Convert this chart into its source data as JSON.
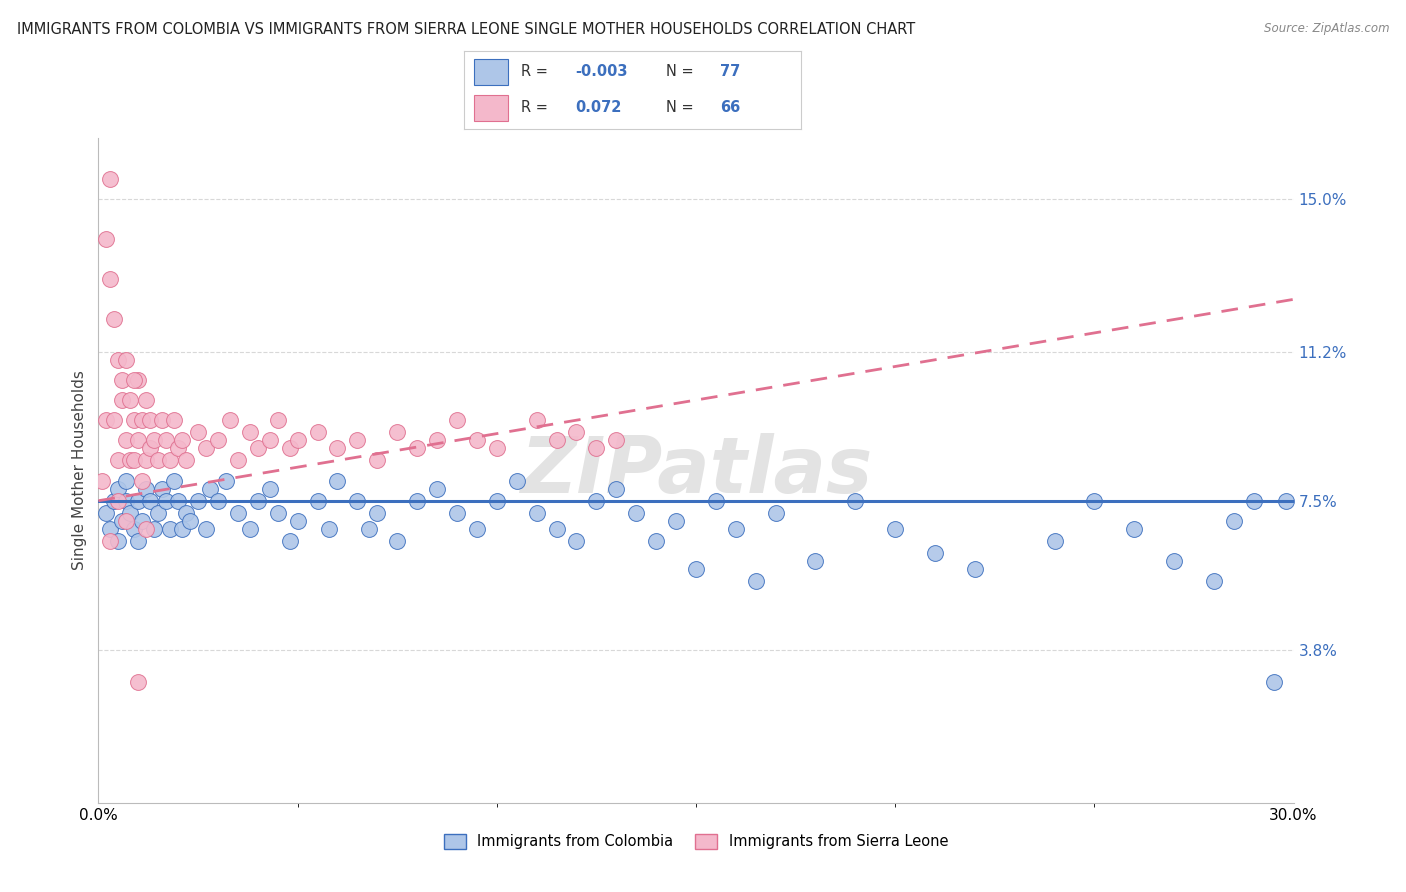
{
  "title": "IMMIGRANTS FROM COLOMBIA VS IMMIGRANTS FROM SIERRA LEONE SINGLE MOTHER HOUSEHOLDS CORRELATION CHART",
  "source": "Source: ZipAtlas.com",
  "ylabel": "Single Mother Households",
  "yticks": [
    0.038,
    0.075,
    0.112,
    0.15
  ],
  "ytick_labels": [
    "3.8%",
    "7.5%",
    "11.2%",
    "15.0%"
  ],
  "xlim": [
    0.0,
    0.3
  ],
  "ylim": [
    0.0,
    0.165
  ],
  "colombia_R": "-0.003",
  "colombia_N": "77",
  "sierraleone_R": "0.072",
  "sierraleone_N": "66",
  "colombia_color": "#aec6e8",
  "sierraleone_color": "#f4b8cb",
  "colombia_line_color": "#3c6fbe",
  "sierraleone_line_color": "#e07090",
  "legend_colombia": "Immigrants from Colombia",
  "legend_sierraleone": "Immigrants from Sierra Leone",
  "colombia_x": [
    0.002,
    0.003,
    0.004,
    0.005,
    0.005,
    0.006,
    0.007,
    0.007,
    0.008,
    0.009,
    0.01,
    0.01,
    0.011,
    0.012,
    0.013,
    0.014,
    0.015,
    0.016,
    0.017,
    0.018,
    0.019,
    0.02,
    0.021,
    0.022,
    0.023,
    0.025,
    0.027,
    0.028,
    0.03,
    0.032,
    0.035,
    0.038,
    0.04,
    0.043,
    0.045,
    0.048,
    0.05,
    0.055,
    0.058,
    0.06,
    0.065,
    0.068,
    0.07,
    0.075,
    0.08,
    0.085,
    0.09,
    0.095,
    0.1,
    0.105,
    0.11,
    0.115,
    0.12,
    0.125,
    0.13,
    0.135,
    0.14,
    0.145,
    0.15,
    0.155,
    0.16,
    0.165,
    0.17,
    0.18,
    0.19,
    0.2,
    0.21,
    0.22,
    0.24,
    0.25,
    0.26,
    0.27,
    0.28,
    0.285,
    0.29,
    0.295,
    0.298
  ],
  "colombia_y": [
    0.072,
    0.068,
    0.075,
    0.078,
    0.065,
    0.07,
    0.075,
    0.08,
    0.072,
    0.068,
    0.075,
    0.065,
    0.07,
    0.078,
    0.075,
    0.068,
    0.072,
    0.078,
    0.075,
    0.068,
    0.08,
    0.075,
    0.068,
    0.072,
    0.07,
    0.075,
    0.068,
    0.078,
    0.075,
    0.08,
    0.072,
    0.068,
    0.075,
    0.078,
    0.072,
    0.065,
    0.07,
    0.075,
    0.068,
    0.08,
    0.075,
    0.068,
    0.072,
    0.065,
    0.075,
    0.078,
    0.072,
    0.068,
    0.075,
    0.08,
    0.072,
    0.068,
    0.065,
    0.075,
    0.078,
    0.072,
    0.065,
    0.07,
    0.058,
    0.075,
    0.068,
    0.055,
    0.072,
    0.06,
    0.075,
    0.068,
    0.062,
    0.058,
    0.065,
    0.075,
    0.068,
    0.06,
    0.055,
    0.07,
    0.075,
    0.03,
    0.075
  ],
  "sierraleone_x": [
    0.001,
    0.002,
    0.002,
    0.003,
    0.003,
    0.004,
    0.004,
    0.005,
    0.005,
    0.006,
    0.006,
    0.007,
    0.007,
    0.008,
    0.008,
    0.009,
    0.009,
    0.01,
    0.01,
    0.011,
    0.011,
    0.012,
    0.012,
    0.013,
    0.013,
    0.014,
    0.015,
    0.016,
    0.017,
    0.018,
    0.019,
    0.02,
    0.021,
    0.022,
    0.025,
    0.027,
    0.03,
    0.033,
    0.035,
    0.038,
    0.04,
    0.043,
    0.045,
    0.048,
    0.05,
    0.055,
    0.06,
    0.065,
    0.07,
    0.075,
    0.08,
    0.085,
    0.09,
    0.095,
    0.1,
    0.11,
    0.115,
    0.12,
    0.125,
    0.13,
    0.003,
    0.005,
    0.007,
    0.009,
    0.01,
    0.012
  ],
  "sierraleone_y": [
    0.08,
    0.095,
    0.14,
    0.065,
    0.13,
    0.12,
    0.095,
    0.11,
    0.085,
    0.1,
    0.105,
    0.09,
    0.11,
    0.085,
    0.1,
    0.095,
    0.085,
    0.09,
    0.105,
    0.08,
    0.095,
    0.1,
    0.085,
    0.095,
    0.088,
    0.09,
    0.085,
    0.095,
    0.09,
    0.085,
    0.095,
    0.088,
    0.09,
    0.085,
    0.092,
    0.088,
    0.09,
    0.095,
    0.085,
    0.092,
    0.088,
    0.09,
    0.095,
    0.088,
    0.09,
    0.092,
    0.088,
    0.09,
    0.085,
    0.092,
    0.088,
    0.09,
    0.095,
    0.09,
    0.088,
    0.095,
    0.09,
    0.092,
    0.088,
    0.09,
    0.155,
    0.075,
    0.07,
    0.105,
    0.03,
    0.068
  ],
  "watermark": "ZIPatlas",
  "background_color": "#ffffff",
  "grid_color": "#d8d8d8"
}
